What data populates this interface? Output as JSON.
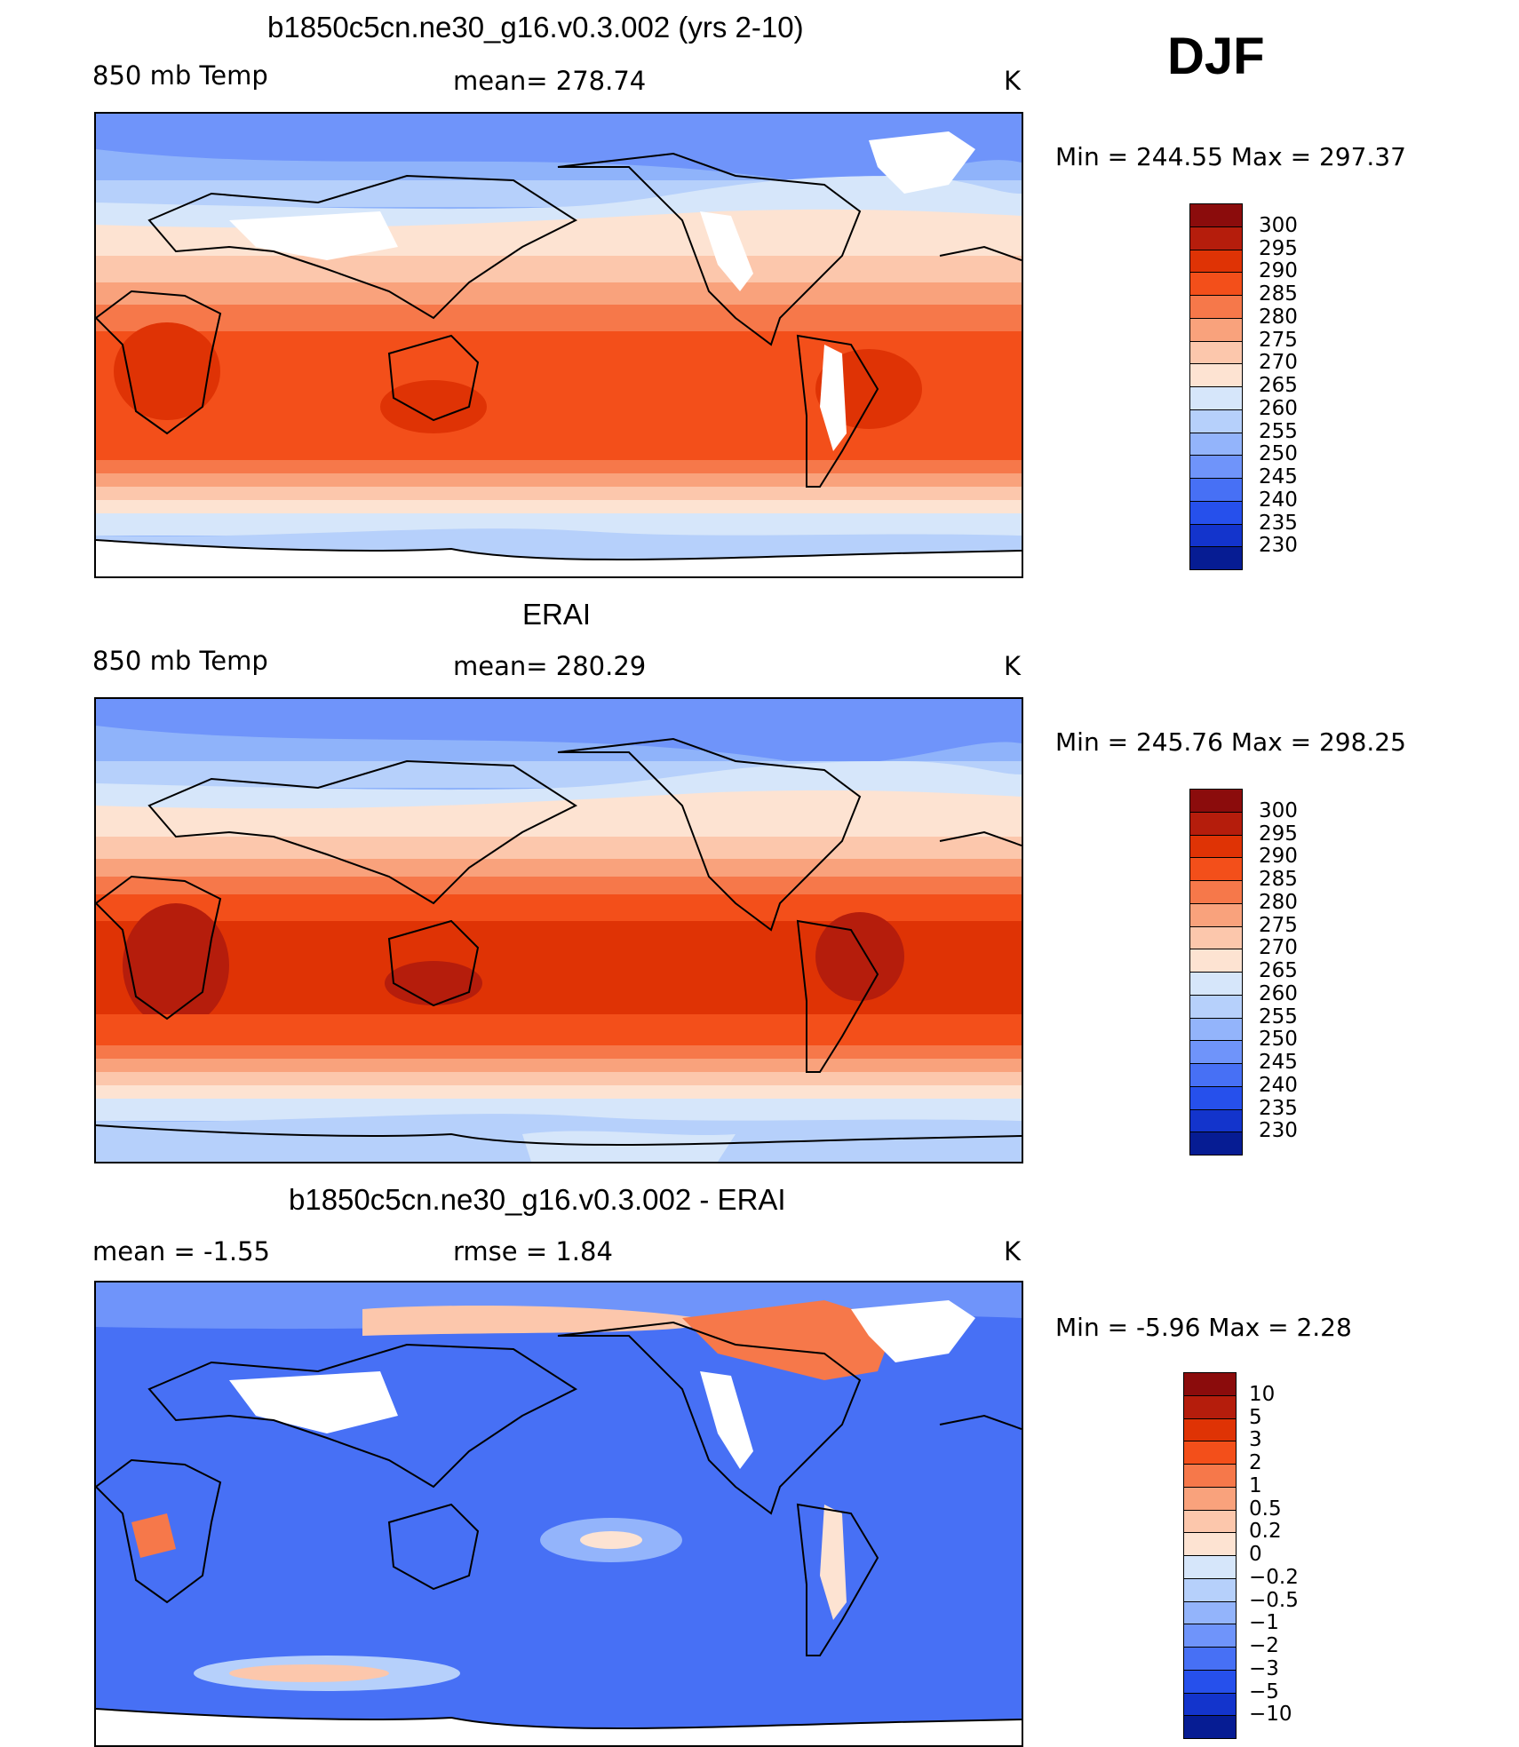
{
  "season": "DJF",
  "panels": [
    {
      "title": "b1850c5cn.ne30_g16.v0.3.002 (yrs 2-10)",
      "left_label": "850 mb Temp",
      "center_label": "mean= 278.74",
      "unit": "K",
      "minmax": "Min = 244.55 Max = 297.37",
      "colorbar": {
        "labels": [
          "300",
          "295",
          "290",
          "285",
          "280",
          "275",
          "270",
          "265",
          "260",
          "255",
          "250",
          "245",
          "240",
          "235",
          "230"
        ],
        "colors": [
          "#8b0c0c",
          "#b51d0c",
          "#df3305",
          "#f34f1a",
          "#f6784a",
          "#f9a27c",
          "#fcc7ac",
          "#fde3d2",
          "#d6e6fa",
          "#b6d0fb",
          "#93b4fb",
          "#6f94fa",
          "#4770f5",
          "#2650ec",
          "#1334cc",
          "#061c93"
        ]
      }
    },
    {
      "title": "ERAI",
      "left_label": "850 mb Temp",
      "center_label": "mean= 280.29",
      "unit": "K",
      "minmax": "Min = 245.76 Max = 298.25",
      "colorbar": {
        "labels": [
          "300",
          "295",
          "290",
          "285",
          "280",
          "275",
          "270",
          "265",
          "260",
          "255",
          "250",
          "245",
          "240",
          "235",
          "230"
        ],
        "colors": [
          "#8b0c0c",
          "#b51d0c",
          "#df3305",
          "#f34f1a",
          "#f6784a",
          "#f9a27c",
          "#fcc7ac",
          "#fde3d2",
          "#d6e6fa",
          "#b6d0fb",
          "#93b4fb",
          "#6f94fa",
          "#4770f5",
          "#2650ec",
          "#1334cc",
          "#061c93"
        ]
      }
    },
    {
      "title": "b1850c5cn.ne30_g16.v0.3.002 - ERAI",
      "left_label": "mean = -1.55",
      "center_label": "rmse = 1.84",
      "unit": "K",
      "minmax": "Min = -5.96 Max = 2.28",
      "colorbar": {
        "labels": [
          "10",
          "5",
          "3",
          "2",
          "1",
          "0.5",
          "0.2",
          "0",
          "-0.2",
          "-0.5",
          "-1",
          "-2",
          "-3",
          "-5",
          "-10"
        ],
        "colors": [
          "#8b0c0c",
          "#b51d0c",
          "#df3305",
          "#f34f1a",
          "#f6784a",
          "#f9a27c",
          "#fcc7ac",
          "#fde3d2",
          "#d6e6fa",
          "#b6d0fb",
          "#93b4fb",
          "#6f94fa",
          "#4770f5",
          "#2650ec",
          "#1334cc",
          "#061c93"
        ]
      }
    }
  ]
}
